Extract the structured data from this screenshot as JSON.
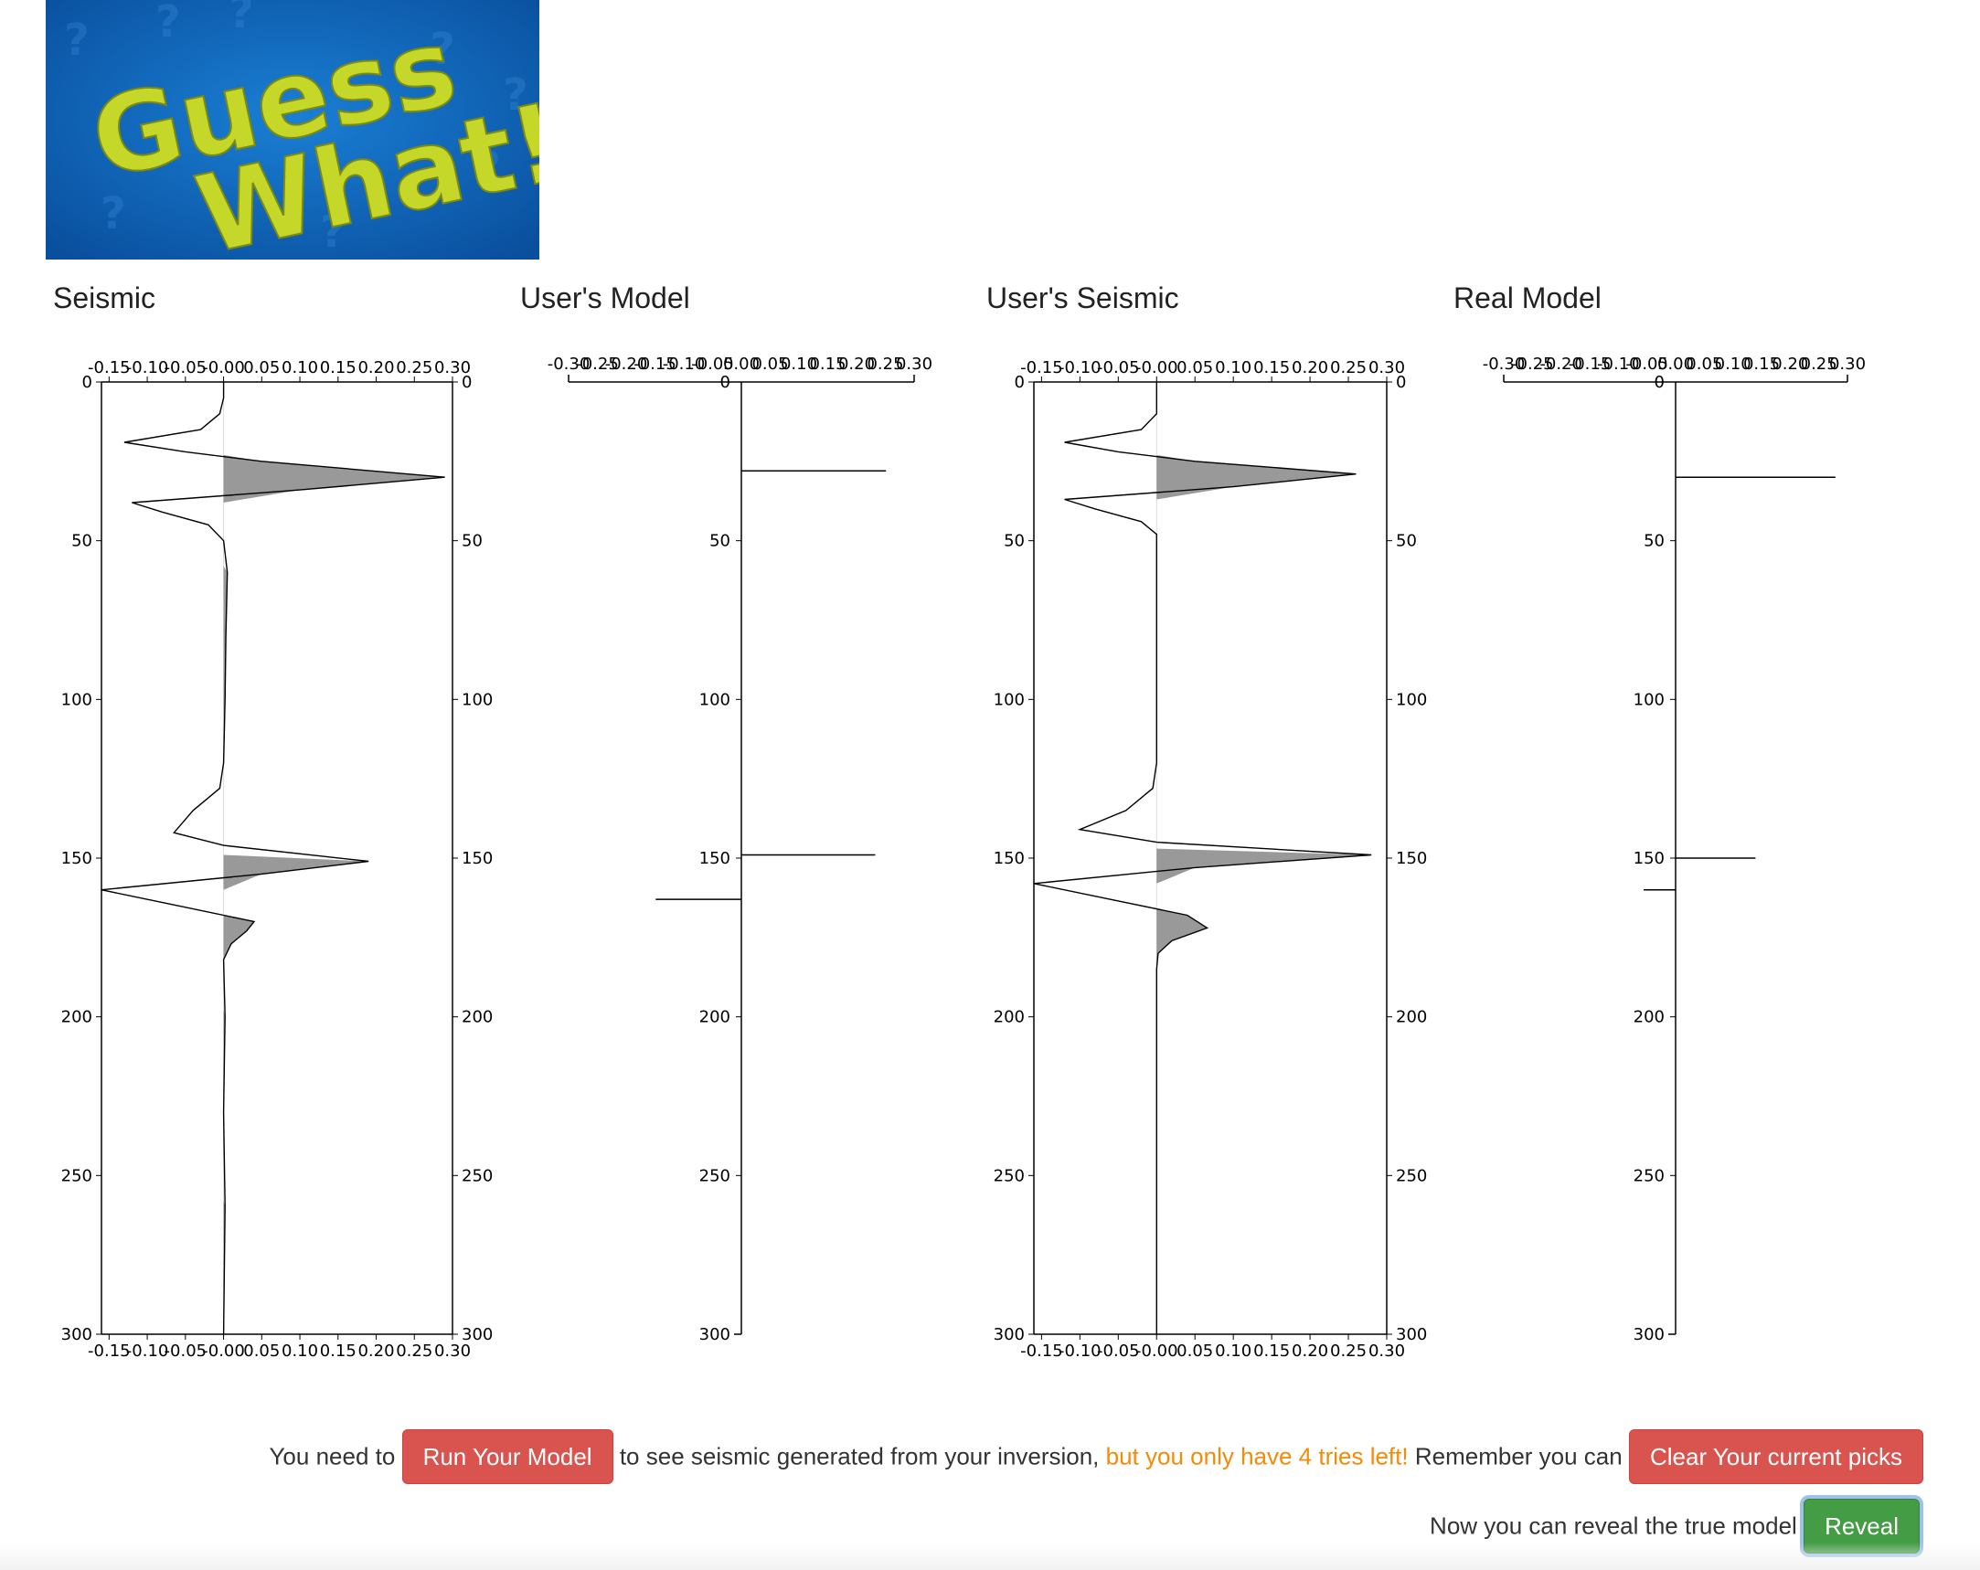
{
  "logo": {
    "line1": "Guess",
    "line2": "What!",
    "bg": "#0a5db0",
    "text_color": "#c5d82a"
  },
  "panels": [
    {
      "title": "Seismic"
    },
    {
      "title": "User's Model"
    },
    {
      "title": "User's Seismic"
    },
    {
      "title": "Real Model"
    }
  ],
  "axes": {
    "seismic_x_ticks": [
      "-0.15",
      "-0.10",
      "-0.05",
      "-0.00",
      "0.05",
      "0.10",
      "0.15",
      "0.20",
      "0.25",
      "0.30"
    ],
    "model_x_ticks": [
      "-0.30",
      "-0.25",
      "-0.20",
      "-0.15",
      "-0.10",
      "-0.05",
      "0.00",
      "0.05",
      "0.10",
      "0.15",
      "0.20",
      "0.25",
      "0.30"
    ],
    "depth_ticks": [
      "0",
      "50",
      "100",
      "150",
      "200",
      "250",
      "300"
    ]
  },
  "chart_data": [
    {
      "type": "line",
      "title": "Seismic",
      "x_range": [
        -0.16,
        0.3
      ],
      "y_range": [
        0,
        300
      ],
      "fill": "positive lobes shaded grey",
      "points": [
        [
          0,
          0
        ],
        [
          5,
          0.0
        ],
        [
          10,
          -0.005
        ],
        [
          15,
          -0.03
        ],
        [
          19,
          -0.13
        ],
        [
          22,
          -0.05
        ],
        [
          25,
          0.05
        ],
        [
          30,
          0.29
        ],
        [
          34,
          0.1
        ],
        [
          38,
          -0.12
        ],
        [
          41,
          -0.08
        ],
        [
          45,
          -0.02
        ],
        [
          50,
          0.0
        ],
        [
          60,
          0.005
        ],
        [
          80,
          0.003
        ],
        [
          100,
          0.002
        ],
        [
          120,
          0.0
        ],
        [
          128,
          -0.005
        ],
        [
          135,
          -0.04
        ],
        [
          142,
          -0.065
        ],
        [
          146,
          0.0
        ],
        [
          151,
          0.19
        ],
        [
          155,
          0.05
        ],
        [
          160,
          -0.16
        ],
        [
          165,
          -0.06
        ],
        [
          170,
          0.04
        ],
        [
          173,
          0.03
        ],
        [
          177,
          0.01
        ],
        [
          182,
          0.0
        ],
        [
          200,
          0.002
        ],
        [
          230,
          0.0
        ],
        [
          260,
          0.002
        ],
        [
          300,
          0.0
        ]
      ]
    },
    {
      "type": "line",
      "title": "User's Model",
      "x_range": [
        -0.3,
        0.3
      ],
      "y_range": [
        0,
        300
      ],
      "spikes": [
        {
          "depth": 28,
          "value": 0.27
        },
        {
          "depth": 149,
          "value": 0.25
        },
        {
          "depth": 163,
          "value": -0.16
        }
      ]
    },
    {
      "type": "line",
      "title": "User's Seismic",
      "x_range": [
        -0.16,
        0.3
      ],
      "y_range": [
        0,
        300
      ],
      "fill": "positive lobes shaded grey",
      "points": [
        [
          0,
          0
        ],
        [
          10,
          0.0
        ],
        [
          15,
          -0.02
        ],
        [
          19,
          -0.12
        ],
        [
          22,
          -0.05
        ],
        [
          25,
          0.05
        ],
        [
          29,
          0.26
        ],
        [
          33,
          0.1
        ],
        [
          37,
          -0.12
        ],
        [
          40,
          -0.08
        ],
        [
          44,
          -0.02
        ],
        [
          48,
          0.0
        ],
        [
          60,
          0.0
        ],
        [
          120,
          0.0
        ],
        [
          128,
          -0.005
        ],
        [
          135,
          -0.04
        ],
        [
          141,
          -0.1
        ],
        [
          145,
          0.0
        ],
        [
          149,
          0.28
        ],
        [
          153,
          0.05
        ],
        [
          158,
          -0.16
        ],
        [
          163,
          -0.06
        ],
        [
          168,
          0.04
        ],
        [
          172,
          0.066
        ],
        [
          176,
          0.02
        ],
        [
          180,
          0.002
        ],
        [
          185,
          0.0
        ],
        [
          300,
          0.0
        ]
      ]
    },
    {
      "type": "line",
      "title": "Real Model",
      "x_range": [
        -0.3,
        0.3
      ],
      "y_range": [
        0,
        300
      ],
      "spikes": [
        {
          "depth": 30,
          "value": 0.3
        },
        {
          "depth": 150,
          "value": 0.15
        },
        {
          "depth": 160,
          "value": -0.06
        }
      ]
    }
  ],
  "controls": {
    "text_need": "You need to",
    "run_button": "Run Your Model",
    "text_see": "to see seismic generated from your inversion,",
    "tries_warning": "but you only have 4 tries left!",
    "text_remember": "Remember you can",
    "clear_button": "Clear Your current picks",
    "text_reveal": "Now you can reveal the true model",
    "reveal_button": "Reveal"
  }
}
